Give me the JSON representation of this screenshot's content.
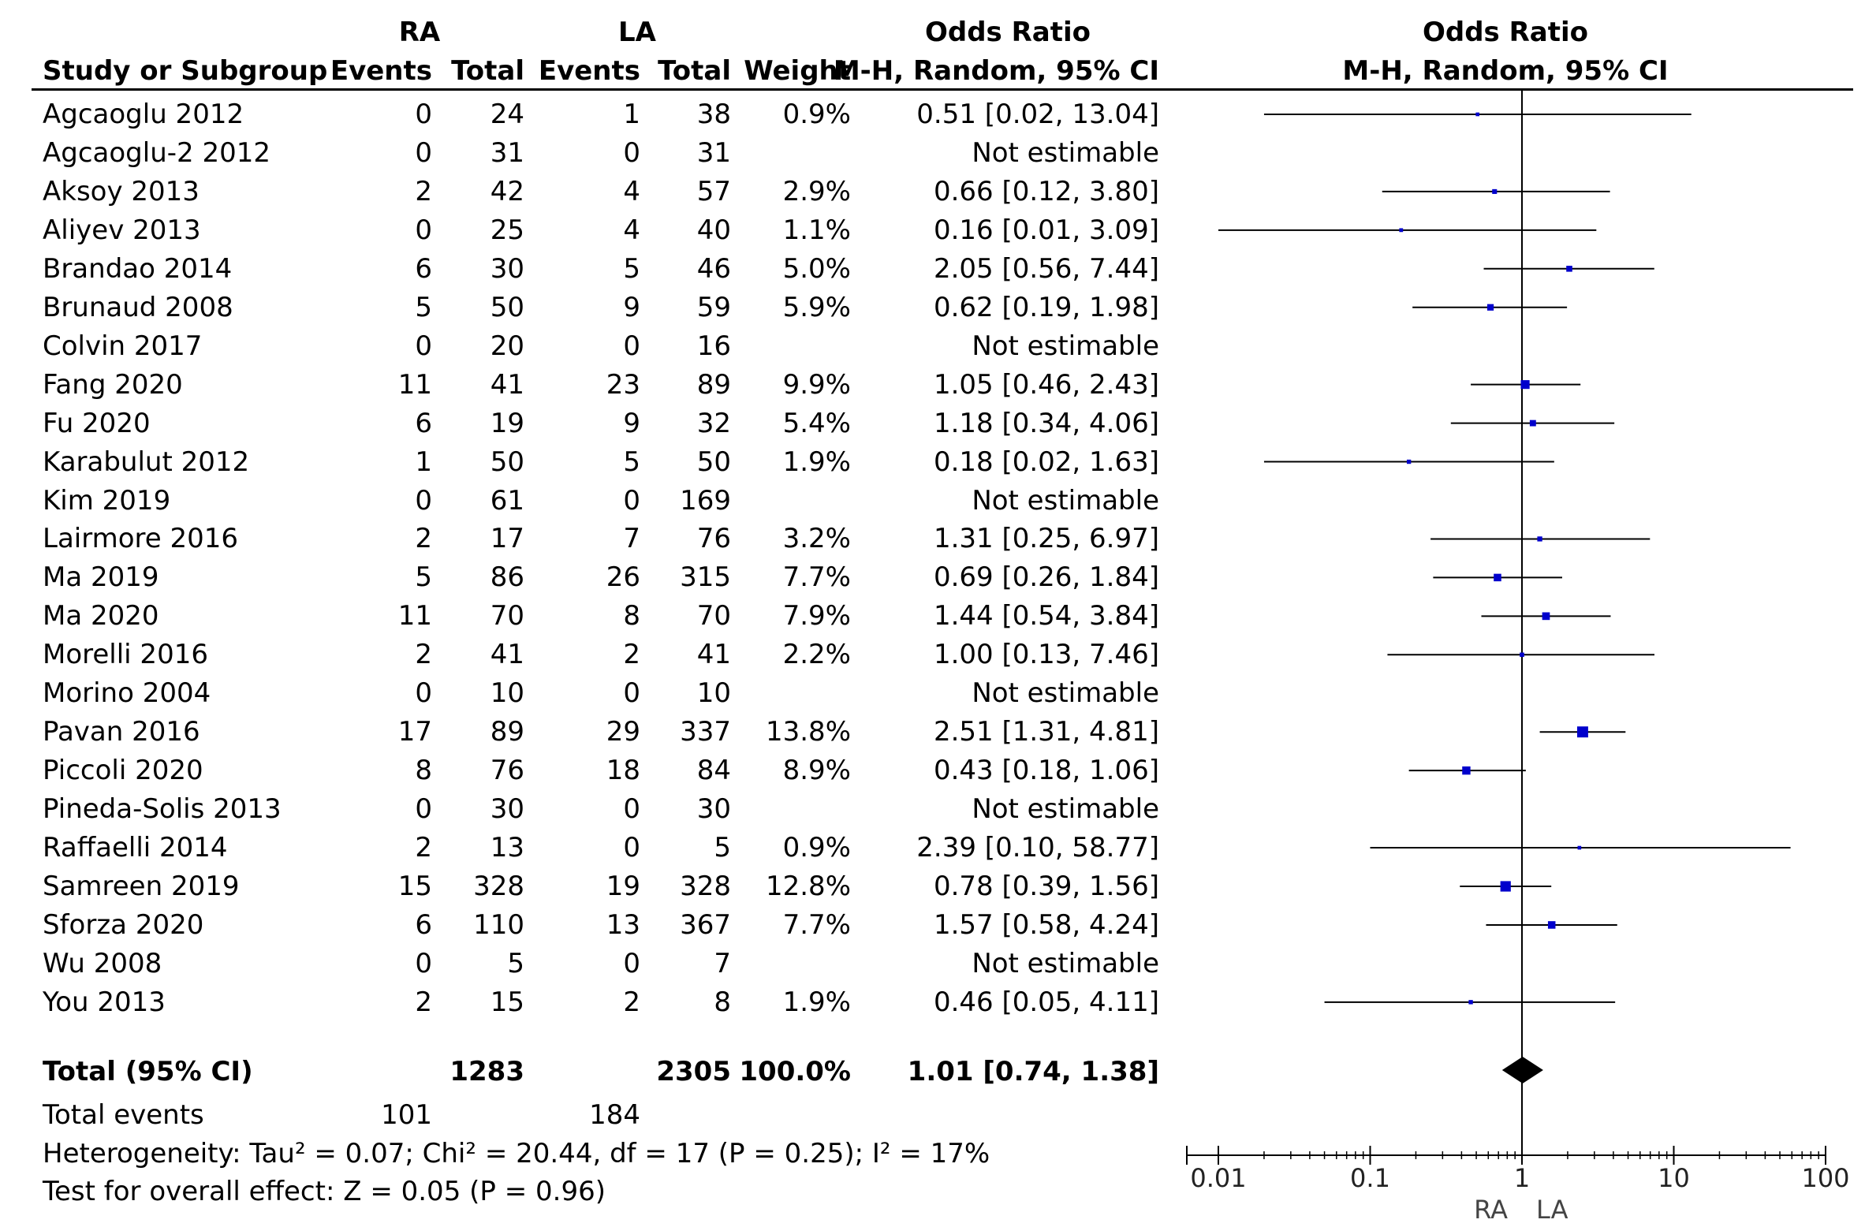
{
  "header": {
    "group1": "RA",
    "group2": "LA",
    "or_title": "Odds Ratio",
    "or_title_plot": "Odds Ratio",
    "study": "Study or Subgroup",
    "events1": "Events",
    "total1": "Total",
    "events2": "Events",
    "total2": "Total",
    "weight": "Weight",
    "method": "M-H, Random, 95% CI",
    "method_plot": "M-H, Random, 95% CI"
  },
  "studies": [
    {
      "name": "Agcaoglu 2012",
      "e1": "0",
      "t1": "24",
      "e2": "1",
      "t2": "38",
      "w": "0.9%",
      "ci": "0.51 [0.02, 13.04]"
    },
    {
      "name": "Agcaoglu-2 2012",
      "e1": "0",
      "t1": "31",
      "e2": "0",
      "t2": "31",
      "w": "",
      "ci": "Not estimable"
    },
    {
      "name": "Aksoy 2013",
      "e1": "2",
      "t1": "42",
      "e2": "4",
      "t2": "57",
      "w": "2.9%",
      "ci": "0.66 [0.12, 3.80]"
    },
    {
      "name": "Aliyev 2013",
      "e1": "0",
      "t1": "25",
      "e2": "4",
      "t2": "40",
      "w": "1.1%",
      "ci": "0.16 [0.01, 3.09]"
    },
    {
      "name": "Brandao 2014",
      "e1": "6",
      "t1": "30",
      "e2": "5",
      "t2": "46",
      "w": "5.0%",
      "ci": "2.05 [0.56, 7.44]"
    },
    {
      "name": "Brunaud 2008",
      "e1": "5",
      "t1": "50",
      "e2": "9",
      "t2": "59",
      "w": "5.9%",
      "ci": "0.62 [0.19, 1.98]"
    },
    {
      "name": "Colvin 2017",
      "e1": "0",
      "t1": "20",
      "e2": "0",
      "t2": "16",
      "w": "",
      "ci": "Not estimable"
    },
    {
      "name": "Fang 2020",
      "e1": "11",
      "t1": "41",
      "e2": "23",
      "t2": "89",
      "w": "9.9%",
      "ci": "1.05 [0.46, 2.43]"
    },
    {
      "name": "Fu 2020",
      "e1": "6",
      "t1": "19",
      "e2": "9",
      "t2": "32",
      "w": "5.4%",
      "ci": "1.18 [0.34, 4.06]"
    },
    {
      "name": "Karabulut 2012",
      "e1": "1",
      "t1": "50",
      "e2": "5",
      "t2": "50",
      "w": "1.9%",
      "ci": "0.18 [0.02, 1.63]"
    },
    {
      "name": "Kim 2019",
      "e1": "0",
      "t1": "61",
      "e2": "0",
      "t2": "169",
      "w": "",
      "ci": "Not estimable"
    },
    {
      "name": "Lairmore 2016",
      "e1": "2",
      "t1": "17",
      "e2": "7",
      "t2": "76",
      "w": "3.2%",
      "ci": "1.31 [0.25, 6.97]"
    },
    {
      "name": "Ma 2019",
      "e1": "5",
      "t1": "86",
      "e2": "26",
      "t2": "315",
      "w": "7.7%",
      "ci": "0.69 [0.26, 1.84]"
    },
    {
      "name": "Ma 2020",
      "e1": "11",
      "t1": "70",
      "e2": "8",
      "t2": "70",
      "w": "7.9%",
      "ci": "1.44 [0.54, 3.84]"
    },
    {
      "name": "Morelli 2016",
      "e1": "2",
      "t1": "41",
      "e2": "2",
      "t2": "41",
      "w": "2.2%",
      "ci": "1.00 [0.13, 7.46]"
    },
    {
      "name": "Morino 2004",
      "e1": "0",
      "t1": "10",
      "e2": "0",
      "t2": "10",
      "w": "",
      "ci": "Not estimable"
    },
    {
      "name": "Pavan 2016",
      "e1": "17",
      "t1": "89",
      "e2": "29",
      "t2": "337",
      "w": "13.8%",
      "ci": "2.51 [1.31, 4.81]"
    },
    {
      "name": "Piccoli 2020",
      "e1": "8",
      "t1": "76",
      "e2": "18",
      "t2": "84",
      "w": "8.9%",
      "ci": "0.43 [0.18, 1.06]"
    },
    {
      "name": "Pineda-Solis 2013",
      "e1": "0",
      "t1": "30",
      "e2": "0",
      "t2": "30",
      "w": "",
      "ci": "Not estimable"
    },
    {
      "name": "Raffaelli 2014",
      "e1": "2",
      "t1": "13",
      "e2": "0",
      "t2": "5",
      "w": "0.9%",
      "ci": "2.39 [0.10, 58.77]"
    },
    {
      "name": "Samreen 2019",
      "e1": "15",
      "t1": "328",
      "e2": "19",
      "t2": "328",
      "w": "12.8%",
      "ci": "0.78 [0.39, 1.56]"
    },
    {
      "name": "Sforza 2020",
      "e1": "6",
      "t1": "110",
      "e2": "13",
      "t2": "367",
      "w": "7.7%",
      "ci": "1.57 [0.58, 4.24]"
    },
    {
      "name": "Wu 2008",
      "e1": "0",
      "t1": "5",
      "e2": "0",
      "t2": "7",
      "w": "",
      "ci": "Not estimable"
    },
    {
      "name": "You 2013",
      "e1": "2",
      "t1": "15",
      "e2": "2",
      "t2": "8",
      "w": "1.9%",
      "ci": "0.46 [0.05, 4.11]"
    }
  ],
  "total": {
    "label": "Total (95% CI)",
    "t1": "1283",
    "t2": "2305",
    "w": "100.0%",
    "ci": "1.01 [0.74, 1.38]",
    "events_label": "Total events",
    "events1": "101",
    "events2": "184"
  },
  "footer": {
    "heterogeneity": "Heterogeneity: Tau² = 0.07; Chi² = 20.44, df = 17 (P = 0.25); I² = 17%",
    "overall": "Test for overall effect: Z = 0.05 (P = 0.96)"
  },
  "axis": {
    "ticks": [
      "0.01",
      "0.1",
      "1",
      "10",
      "100"
    ],
    "left_label": "RA",
    "right_label": "LA"
  },
  "colors": {
    "marker": "#0000cc",
    "line": "#000000",
    "diamond": "#000000"
  },
  "chart_data": {
    "type": "forest",
    "xscale": "log",
    "xlim": [
      0.01,
      100
    ],
    "reference_line": 1,
    "points": [
      {
        "study": "Agcaoglu 2012",
        "or": 0.51,
        "lo": 0.02,
        "hi": 13.04,
        "weight": 0.9
      },
      {
        "study": "Agcaoglu-2 2012",
        "or": null,
        "lo": null,
        "hi": null,
        "weight": 0
      },
      {
        "study": "Aksoy 2013",
        "or": 0.66,
        "lo": 0.12,
        "hi": 3.8,
        "weight": 2.9
      },
      {
        "study": "Aliyev 2013",
        "or": 0.16,
        "lo": 0.01,
        "hi": 3.09,
        "weight": 1.1
      },
      {
        "study": "Brandao 2014",
        "or": 2.05,
        "lo": 0.56,
        "hi": 7.44,
        "weight": 5.0
      },
      {
        "study": "Brunaud 2008",
        "or": 0.62,
        "lo": 0.19,
        "hi": 1.98,
        "weight": 5.9
      },
      {
        "study": "Colvin 2017",
        "or": null,
        "lo": null,
        "hi": null,
        "weight": 0
      },
      {
        "study": "Fang 2020",
        "or": 1.05,
        "lo": 0.46,
        "hi": 2.43,
        "weight": 9.9
      },
      {
        "study": "Fu 2020",
        "or": 1.18,
        "lo": 0.34,
        "hi": 4.06,
        "weight": 5.4
      },
      {
        "study": "Karabulut 2012",
        "or": 0.18,
        "lo": 0.02,
        "hi": 1.63,
        "weight": 1.9
      },
      {
        "study": "Kim 2019",
        "or": null,
        "lo": null,
        "hi": null,
        "weight": 0
      },
      {
        "study": "Lairmore 2016",
        "or": 1.31,
        "lo": 0.25,
        "hi": 6.97,
        "weight": 3.2
      },
      {
        "study": "Ma 2019",
        "or": 0.69,
        "lo": 0.26,
        "hi": 1.84,
        "weight": 7.7
      },
      {
        "study": "Ma 2020",
        "or": 1.44,
        "lo": 0.54,
        "hi": 3.84,
        "weight": 7.9
      },
      {
        "study": "Morelli 2016",
        "or": 1.0,
        "lo": 0.13,
        "hi": 7.46,
        "weight": 2.2
      },
      {
        "study": "Morino 2004",
        "or": null,
        "lo": null,
        "hi": null,
        "weight": 0
      },
      {
        "study": "Pavan 2016",
        "or": 2.51,
        "lo": 1.31,
        "hi": 4.81,
        "weight": 13.8
      },
      {
        "study": "Piccoli 2020",
        "or": 0.43,
        "lo": 0.18,
        "hi": 1.06,
        "weight": 8.9
      },
      {
        "study": "Pineda-Solis 2013",
        "or": null,
        "lo": null,
        "hi": null,
        "weight": 0
      },
      {
        "study": "Raffaelli 2014",
        "or": 2.39,
        "lo": 0.1,
        "hi": 58.77,
        "weight": 0.9
      },
      {
        "study": "Samreen 2019",
        "or": 0.78,
        "lo": 0.39,
        "hi": 1.56,
        "weight": 12.8
      },
      {
        "study": "Sforza 2020",
        "or": 1.57,
        "lo": 0.58,
        "hi": 4.24,
        "weight": 7.7
      },
      {
        "study": "Wu 2008",
        "or": null,
        "lo": null,
        "hi": null,
        "weight": 0
      },
      {
        "study": "You 2013",
        "or": 0.46,
        "lo": 0.05,
        "hi": 4.11,
        "weight": 1.9
      }
    ],
    "pooled": {
      "or": 1.01,
      "lo": 0.74,
      "hi": 1.38
    }
  }
}
